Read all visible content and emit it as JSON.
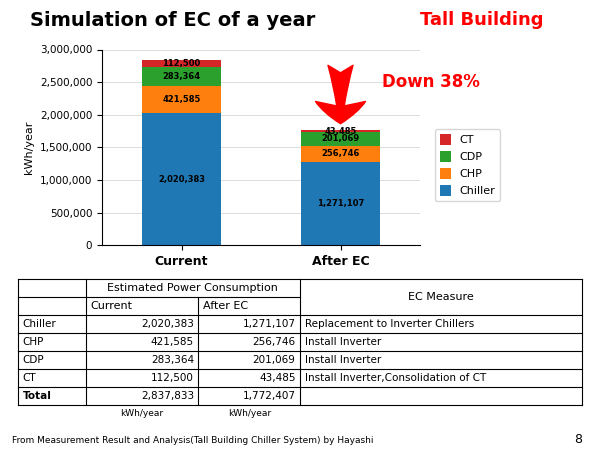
{
  "chart_data": {
    "type": "bar",
    "stacked": true,
    "title": "Simulation of EC of a year",
    "subtitle": {
      "text": "Tall Building",
      "color": "red"
    },
    "categories": [
      "Current",
      "After EC"
    ],
    "series": [
      {
        "name": "Chiller",
        "values": [
          2020383,
          1271107
        ],
        "value_labels": [
          "2,020,383",
          "1,271,107"
        ]
      },
      {
        "name": "CHP",
        "values": [
          421585,
          256746
        ],
        "value_labels": [
          "421,585",
          "256,746"
        ]
      },
      {
        "name": "CDP",
        "values": [
          283364,
          201069
        ],
        "value_labels": [
          "283,364",
          "201,069"
        ]
      },
      {
        "name": "CT",
        "values": [
          112500,
          43485
        ],
        "value_labels": [
          "112,500",
          "43,485"
        ]
      }
    ],
    "ylabel": "kWh/year",
    "ylim": [
      0,
      3000000
    ],
    "yticks": [
      0,
      {
        "value": 500000,
        "label": "500,000"
      },
      {
        "value": 1000000,
        "label": "1,000,000"
      },
      {
        "value": 1500000,
        "label": "1,500,000"
      },
      {
        "value": 2000000,
        "label": "2,000,000"
      },
      {
        "value": 2500000,
        "label": "2,500,000"
      },
      {
        "value": 3000000,
        "label": "3,000,000"
      }
    ],
    "grid": "y",
    "legend": "upper left",
    "data_labels": true,
    "annotations": [
      {
        "text": "Down 38%",
        "color": "red",
        "category": "After EC",
        "y": 2500000,
        "arrow_from": 2800000,
        "arrow_to": 1820000
      }
    ],
    "table": {
      "header": "Estimated Power Consumption",
      "columns": [
        "Current",
        "After EC"
      ],
      "measure_header": "EC Measure",
      "rows": [
        [
          "Chiller",
          "2,020,383",
          "1,271,107",
          "Replacement to Inverter Chillers"
        ],
        [
          "CHP",
          "421,585",
          "256,746",
          "Install Inverter"
        ],
        [
          "CDP",
          "283,364",
          "201,069",
          "Install Inverter"
        ],
        [
          "CT",
          "112,500",
          "43,485",
          "Install Inverter,Consolidation of CT"
        ],
        [
          "Total",
          "2,837,833",
          "1,772,407",
          null
        ]
      ],
      "unit": "kWh/year"
    },
    "footer": "From Measurement Result and Analysis(Tall Building Chiller System) by Hayashi",
    "page": "8"
  }
}
